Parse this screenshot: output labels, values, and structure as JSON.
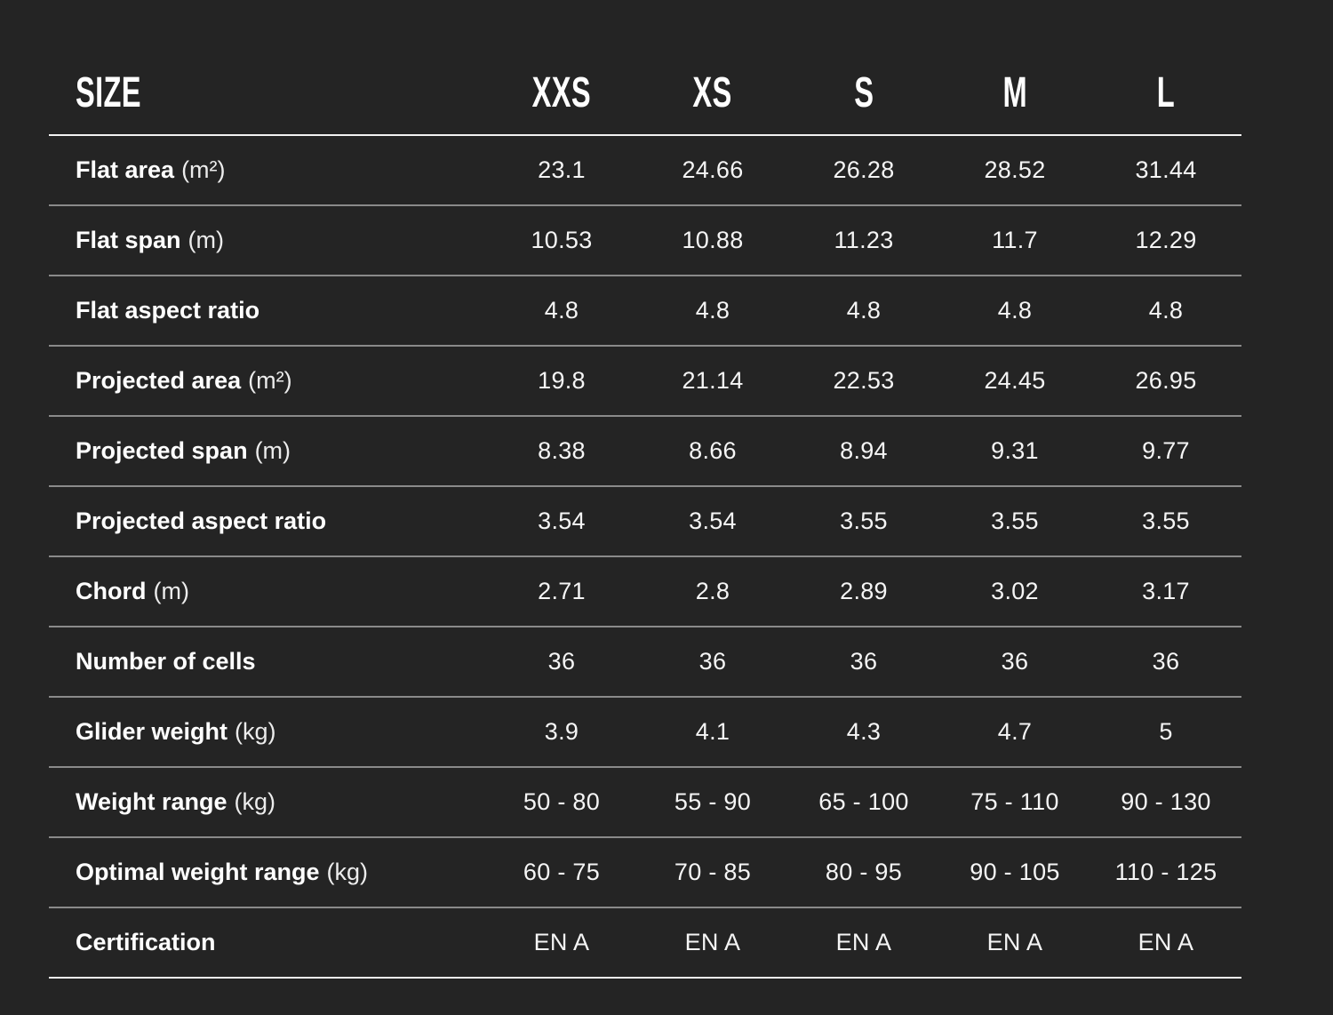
{
  "table": {
    "header": {
      "label": "SIZE",
      "columns": [
        "XXS",
        "XS",
        "S",
        "M",
        "L"
      ]
    },
    "rows": [
      {
        "name": "Flat area",
        "unit": "(m²)",
        "values": [
          "23.1",
          "24.66",
          "26.28",
          "28.52",
          "31.44"
        ]
      },
      {
        "name": "Flat span",
        "unit": "(m)",
        "values": [
          "10.53",
          "10.88",
          "11.23",
          "11.7",
          "12.29"
        ]
      },
      {
        "name": "Flat aspect ratio",
        "unit": "",
        "values": [
          "4.8",
          "4.8",
          "4.8",
          "4.8",
          "4.8"
        ]
      },
      {
        "name": "Projected area",
        "unit": "(m²)",
        "values": [
          "19.8",
          "21.14",
          "22.53",
          "24.45",
          "26.95"
        ]
      },
      {
        "name": "Projected span",
        "unit": "(m)",
        "values": [
          "8.38",
          "8.66",
          "8.94",
          "9.31",
          "9.77"
        ]
      },
      {
        "name": "Projected aspect ratio",
        "unit": "",
        "values": [
          "3.54",
          "3.54",
          "3.55",
          "3.55",
          "3.55"
        ]
      },
      {
        "name": "Chord",
        "unit": "(m)",
        "values": [
          "2.71",
          "2.8",
          "2.89",
          "3.02",
          "3.17"
        ]
      },
      {
        "name": "Number of cells",
        "unit": "",
        "values": [
          "36",
          "36",
          "36",
          "36",
          "36"
        ]
      },
      {
        "name": "Glider weight",
        "unit": "(kg)",
        "values": [
          "3.9",
          "4.1",
          "4.3",
          "4.7",
          "5"
        ]
      },
      {
        "name": "Weight range",
        "unit": "(kg)",
        "values": [
          "50 - 80",
          "55 - 90",
          "65 - 100",
          "75 - 110",
          "90 - 130"
        ]
      },
      {
        "name": "Optimal weight range",
        "unit": "(kg)",
        "values": [
          "60 - 75",
          "70 - 85",
          "80 - 95",
          "90 - 105",
          "110 - 125"
        ]
      },
      {
        "name": "Certification",
        "unit": "",
        "values": [
          "EN A",
          "EN A",
          "EN A",
          "EN A",
          "EN A"
        ]
      }
    ]
  },
  "colors": {
    "background": "#242424",
    "text": "#f5f5f5",
    "separator_strong": "#f2f2f2",
    "separator": "#8a8a8a"
  }
}
